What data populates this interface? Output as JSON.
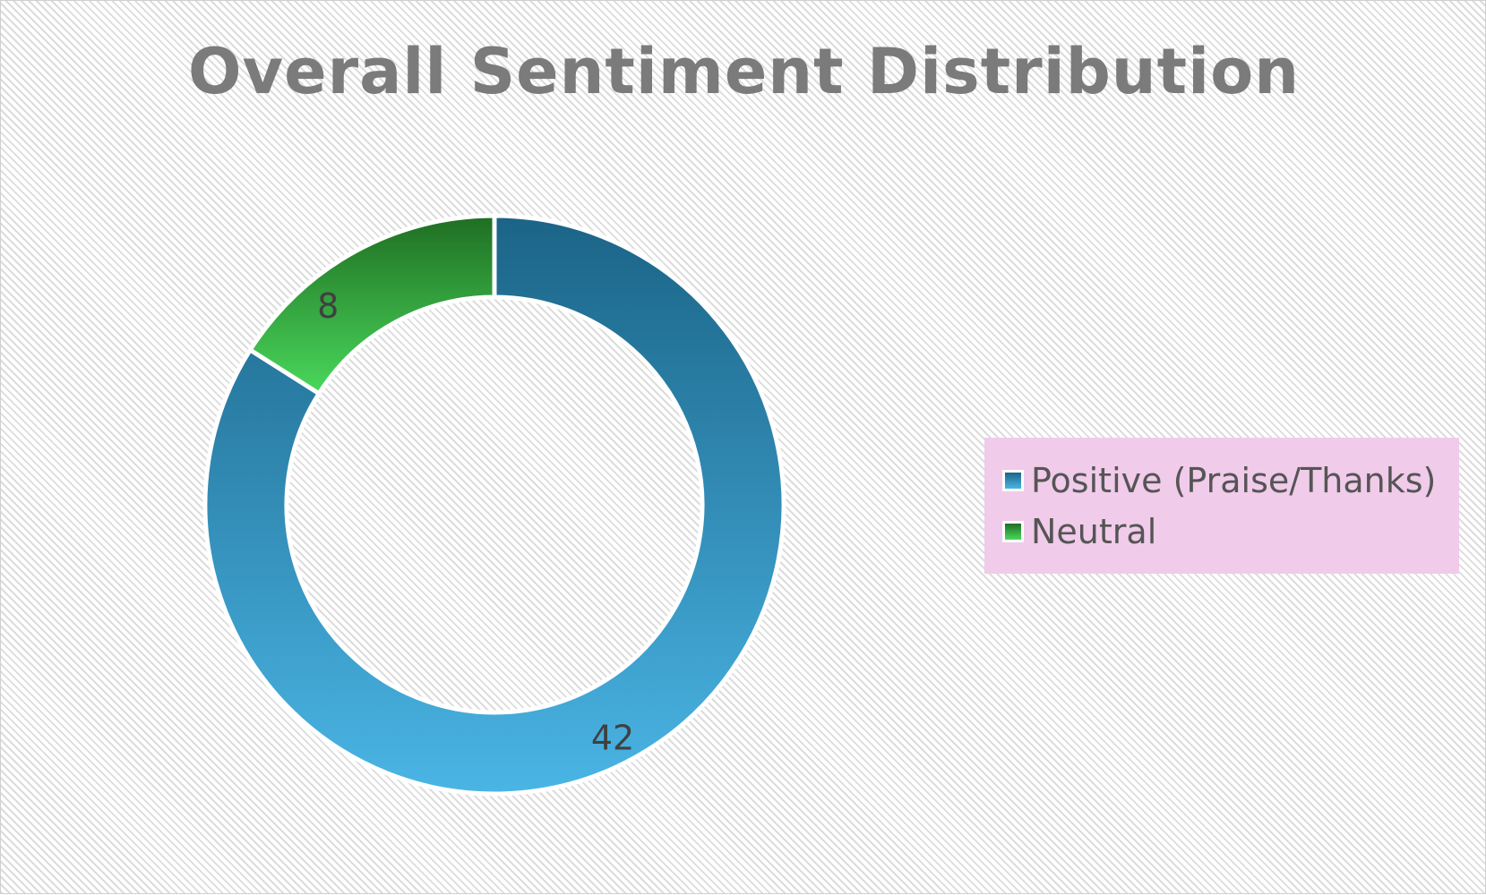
{
  "chart_data": {
    "type": "pie",
    "subtype": "donut",
    "title": "Overall Sentiment Distribution",
    "categories": [
      "Positive (Praise/Thanks)",
      "Neutral"
    ],
    "values": [
      42,
      8
    ],
    "data_labels": [
      "42",
      "8"
    ],
    "colors": [
      "#3a9bcf",
      "#3ab84a"
    ],
    "gradients": [
      {
        "top": "#1b6487",
        "bottom": "#4ab5e5"
      },
      {
        "top": "#1f6e22",
        "bottom": "#4ad85c"
      }
    ],
    "legend_position": "right"
  }
}
